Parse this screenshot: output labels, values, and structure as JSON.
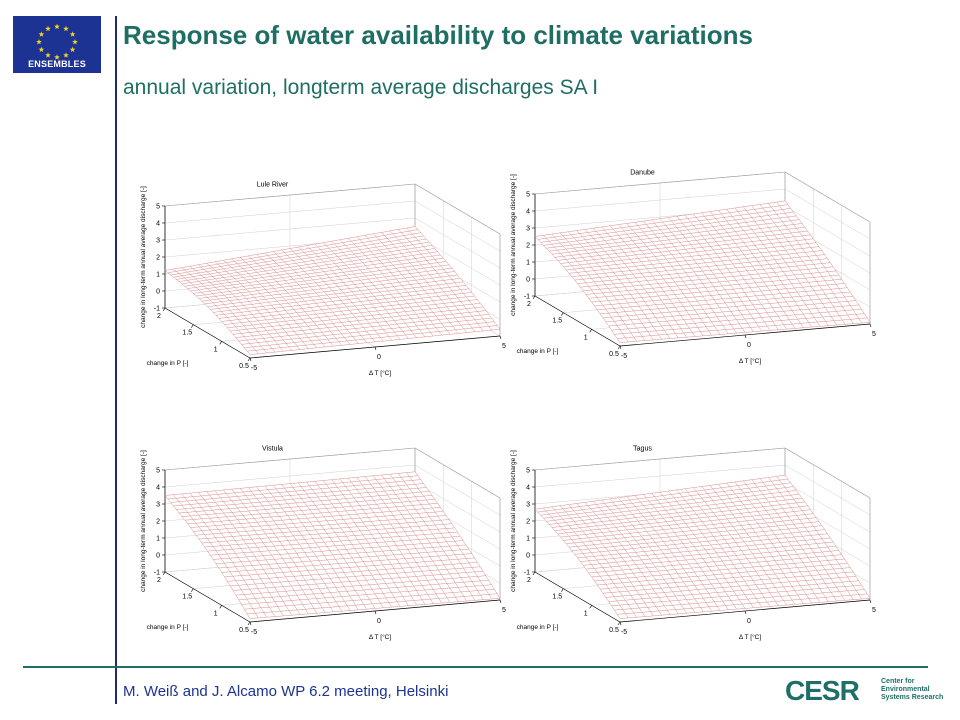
{
  "slide": {
    "title": "Response of water availability to climate variations",
    "subtitle": "annual variation, longterm average discharges  SA I",
    "footer": "M. Weiß and J. Alcamo  WP 6.2 meeting, Helsinki",
    "logo_text": "ENSEMBLES",
    "cesr_logo": "CESR",
    "cesr_lines": [
      "Center for",
      "Environmental",
      "Systems Research"
    ],
    "colors": {
      "title": "#1e6e64",
      "footer": "#1d3394",
      "logo_bg": "#1d3394",
      "mesh": "#d98c8c",
      "divider": "#1d6f67"
    }
  },
  "chart_data": [
    {
      "type": "surface",
      "title": "Lule River",
      "xlabel": "change in P [-]",
      "ylabel": "Δ T [°C]",
      "zlabel": "change in long-term annual average discharge [-]",
      "xlim": [
        0.5,
        2
      ],
      "ylim": [
        -5,
        5
      ],
      "zlim": [
        -1,
        5
      ],
      "x_ticks": [
        "0.5",
        "1",
        "1.5",
        "2"
      ],
      "y_ticks": [
        "-5",
        "0",
        "5"
      ],
      "z_ticks": [
        "-1",
        "0",
        "1",
        "2",
        "3",
        "4",
        "5"
      ],
      "corners": {
        "P2_Tminus5": 1.2,
        "P2_T5": 2.5,
        "P0.5_Tminus5": -0.8,
        "P0.5_T5": -0.6
      },
      "grid": true
    },
    {
      "type": "surface",
      "title": "Danube",
      "xlabel": "change in P [-]",
      "ylabel": "Δ T [°C]",
      "zlabel": "change in long-term annual average discharge [-]",
      "xlim": [
        0.5,
        2
      ],
      "ylim": [
        -5,
        5
      ],
      "zlim": [
        -1,
        5
      ],
      "x_ticks": [
        "0.5",
        "1",
        "1.5",
        "2"
      ],
      "y_ticks": [
        "-5",
        "0",
        "5"
      ],
      "z_ticks": [
        "-1",
        "0",
        "1",
        "2",
        "3",
        "4",
        "5"
      ],
      "corners": {
        "P2_Tminus5": 2.5,
        "P2_T5": 3.3,
        "P0.5_Tminus5": -0.8,
        "P0.5_T5": -0.9
      },
      "grid": true
    },
    {
      "type": "surface",
      "title": "Vistula",
      "xlabel": "change in P [-]",
      "ylabel": "Δ T [°C]",
      "zlabel": "change in long-term annual average discharge [-]",
      "xlim": [
        0.5,
        2
      ],
      "ylim": [
        -5,
        5
      ],
      "zlim": [
        -1,
        5
      ],
      "x_ticks": [
        "0.5",
        "1",
        "1.5",
        "2"
      ],
      "y_ticks": [
        "-5",
        "0",
        "5"
      ],
      "z_ticks": [
        "-1",
        "0",
        "1",
        "2",
        "3",
        "4",
        "5"
      ],
      "corners": {
        "P2_Tminus5": 3.5,
        "P2_T5": 3.6,
        "P0.5_Tminus5": -0.8,
        "P0.5_T5": -0.9
      },
      "grid": true
    },
    {
      "type": "surface",
      "title": "Tagus",
      "xlabel": "change in P [-]",
      "ylabel": "Δ T [°C]",
      "zlabel": "change in long-term annual average discharge [-]",
      "xlim": [
        0.5,
        2
      ],
      "ylim": [
        -5,
        5
      ],
      "zlim": [
        -1,
        5
      ],
      "x_ticks": [
        "0.5",
        "1",
        "1.5",
        "2"
      ],
      "y_ticks": [
        "-5",
        "0",
        "5"
      ],
      "z_ticks": [
        "-1",
        "0",
        "1",
        "2",
        "3",
        "4",
        "5"
      ],
      "corners": {
        "P2_Tminus5": 2.7,
        "P2_T5": 3.4,
        "P0.5_Tminus5": -0.8,
        "P0.5_T5": -0.9
      },
      "grid": true
    }
  ]
}
